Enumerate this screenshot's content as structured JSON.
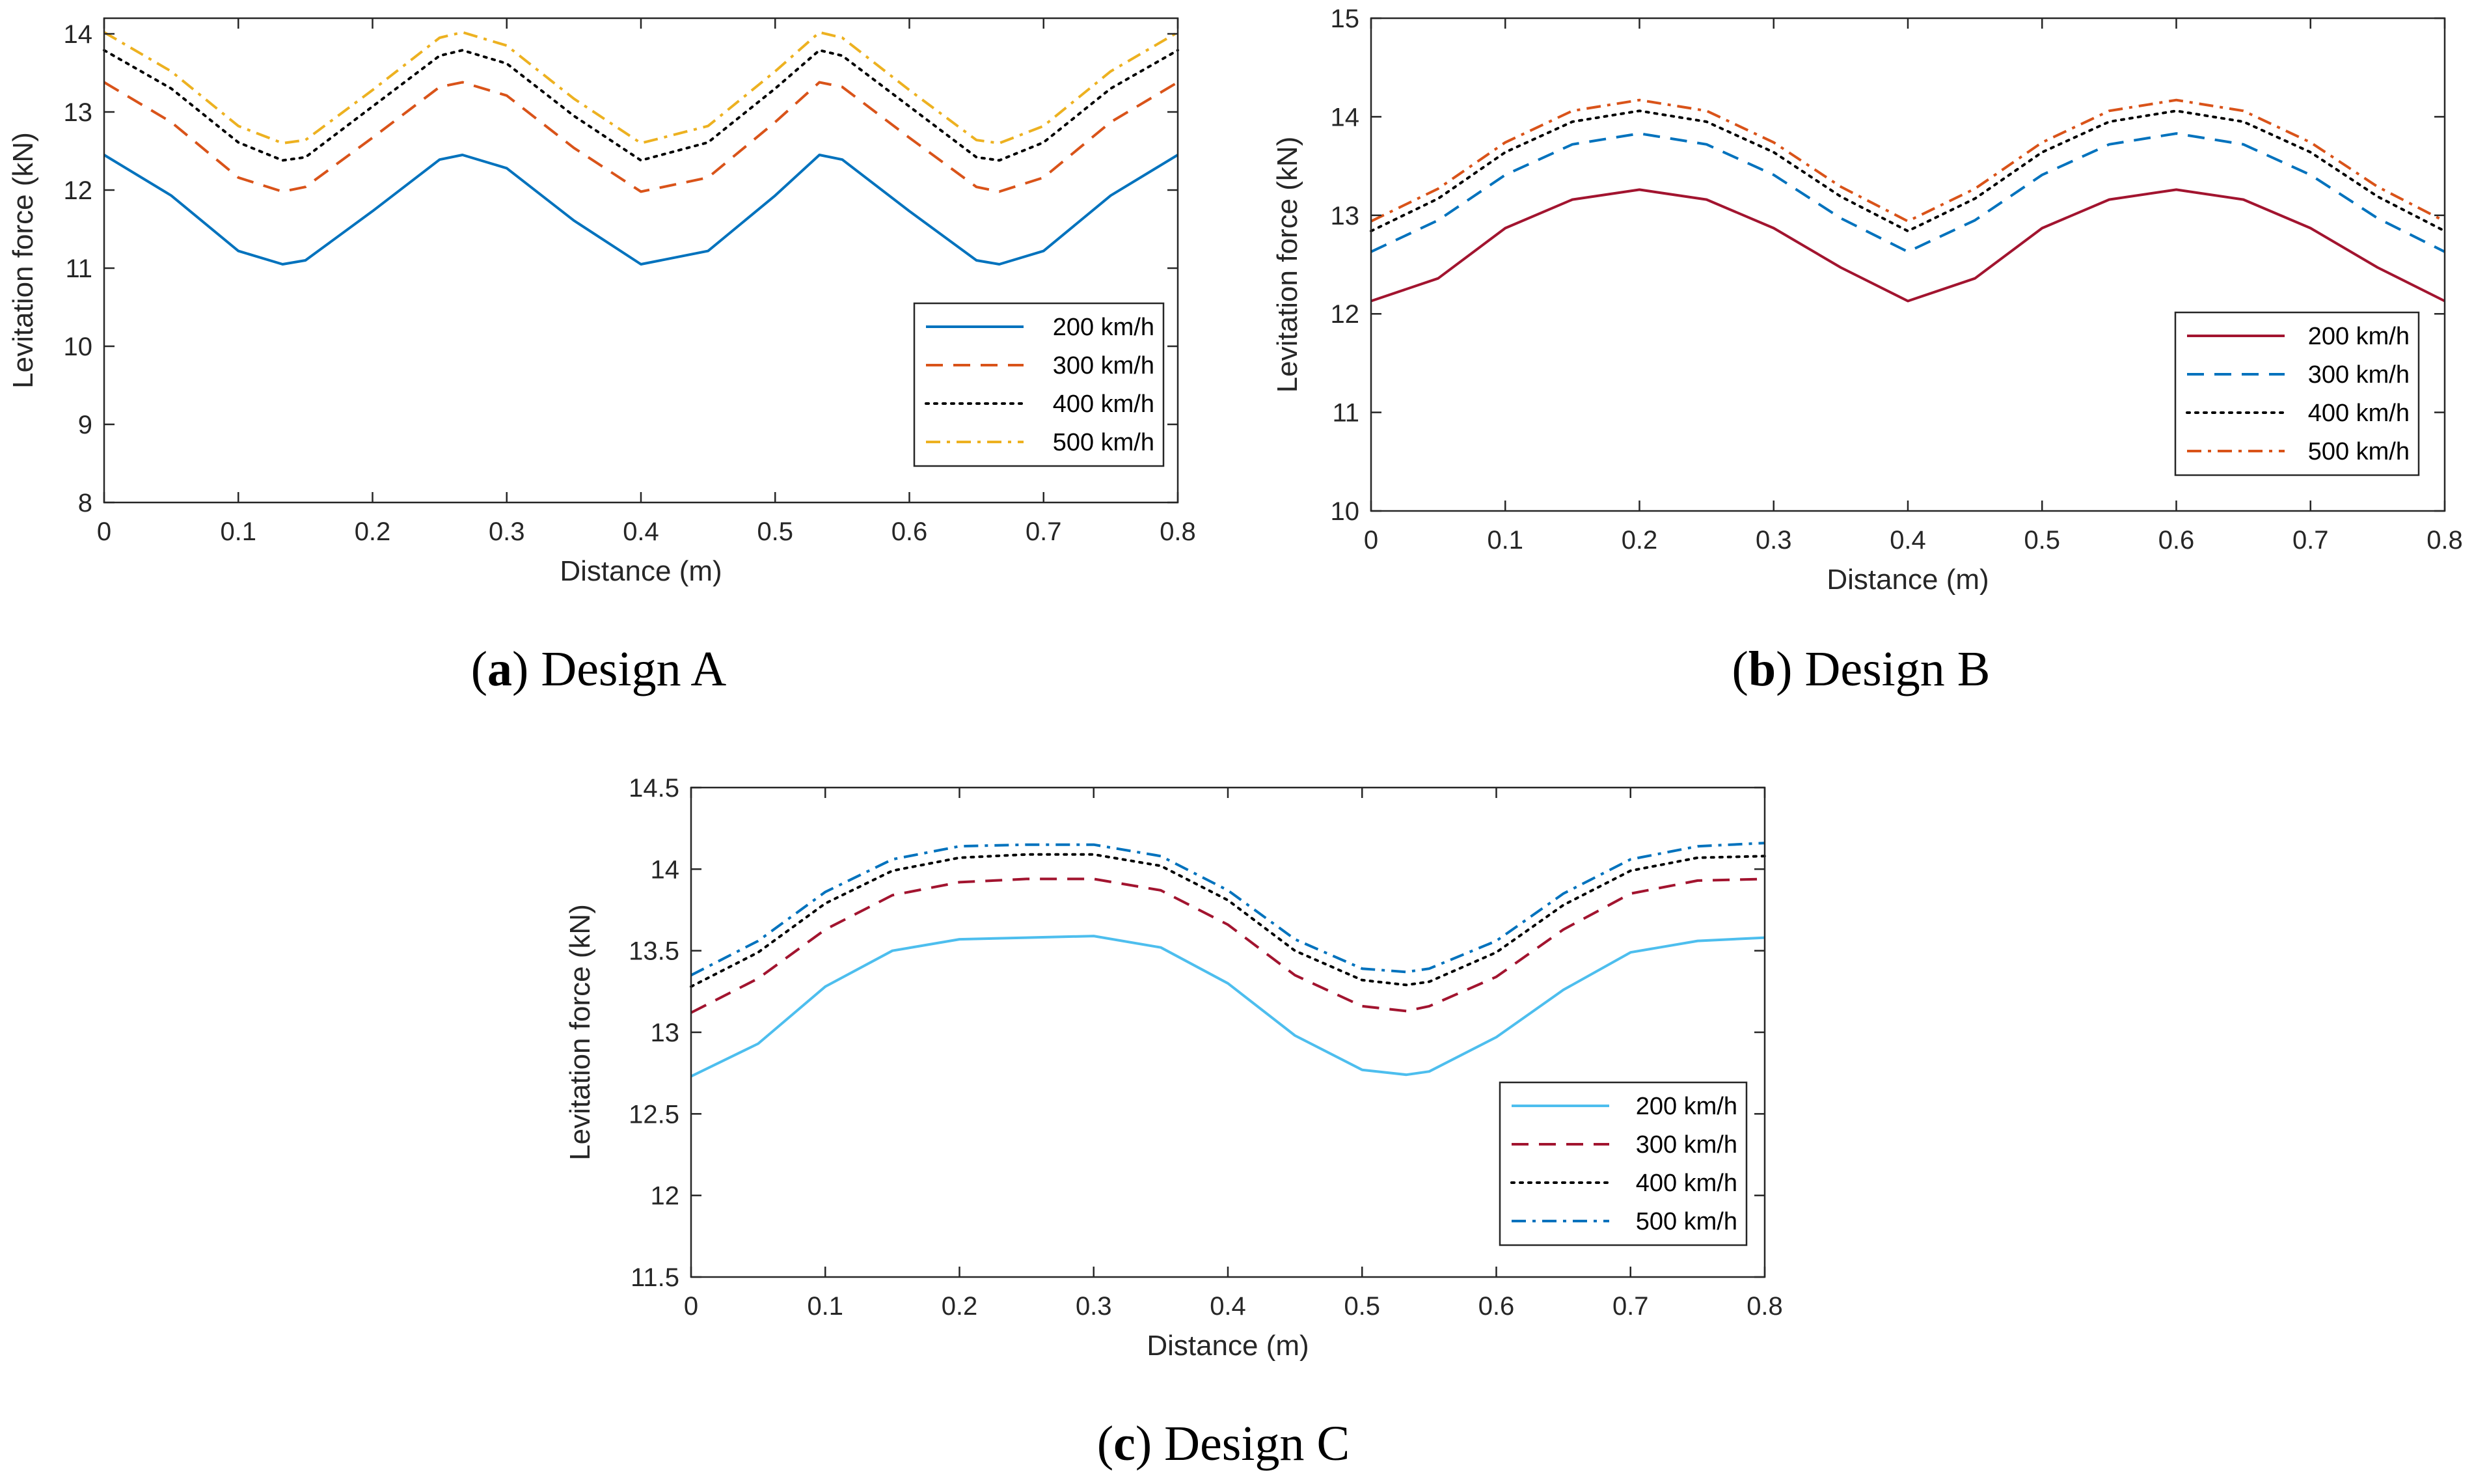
{
  "chart_data": [
    {
      "type": "line",
      "id": "a",
      "caption": {
        "letter": "a",
        "text": "Design A"
      },
      "xlabel": "Distance (m)",
      "ylabel": "Levitation force (kN)",
      "xlim": [
        0,
        0.8
      ],
      "ylim": [
        8,
        14.2
      ],
      "xticks": [
        0,
        0.1,
        0.2,
        0.3,
        0.4,
        0.5,
        0.6,
        0.7,
        0.8
      ],
      "xtick_labels": [
        "0",
        "0.1",
        "0.2",
        "0.3",
        "0.4",
        "0.5",
        "0.6",
        "0.7",
        "0.8"
      ],
      "yticks": [
        8,
        9,
        10,
        11,
        12,
        13,
        14
      ],
      "ytick_labels": [
        "8",
        "9",
        "10",
        "11",
        "12",
        "13",
        "14"
      ],
      "legend_position": "bottom-right",
      "x": [
        0,
        0.05,
        0.1,
        0.133,
        0.15,
        0.2,
        0.25,
        0.267,
        0.3,
        0.35,
        0.4,
        0.45,
        0.5,
        0.533,
        0.55,
        0.6,
        0.65,
        0.667,
        0.7,
        0.75,
        0.8
      ],
      "series": [
        {
          "name": "200 km/h",
          "color": "#0072BD",
          "dash": "solid",
          "values": [
            12.45,
            11.93,
            11.22,
            11.05,
            11.1,
            11.73,
            12.39,
            12.45,
            12.28,
            11.61,
            11.05,
            11.22,
            11.93,
            12.45,
            12.39,
            11.73,
            11.1,
            11.05,
            11.22,
            11.93,
            12.45
          ]
        },
        {
          "name": "300 km/h",
          "color": "#D95319",
          "dash": "long-dash",
          "values": [
            13.38,
            12.87,
            12.16,
            11.98,
            12.04,
            12.67,
            13.32,
            13.38,
            13.21,
            12.54,
            11.98,
            12.16,
            12.87,
            13.38,
            13.32,
            12.67,
            12.04,
            11.98,
            12.16,
            12.87,
            13.38
          ]
        },
        {
          "name": "400 km/h",
          "color": "#000000",
          "dash": "dotted",
          "values": [
            13.79,
            13.3,
            12.61,
            12.38,
            12.42,
            13.07,
            13.72,
            13.79,
            13.62,
            12.95,
            12.38,
            12.61,
            13.3,
            13.79,
            13.72,
            13.07,
            12.42,
            12.38,
            12.61,
            13.3,
            13.79
          ]
        },
        {
          "name": "500 km/h",
          "color": "#EDB120",
          "dash": "dash-dot",
          "values": [
            14.02,
            13.52,
            12.82,
            12.6,
            12.64,
            13.28,
            13.95,
            14.02,
            13.85,
            13.17,
            12.6,
            12.82,
            13.52,
            14.02,
            13.95,
            13.28,
            12.64,
            12.6,
            12.82,
            13.52,
            14.02
          ]
        }
      ]
    },
    {
      "type": "line",
      "id": "b",
      "caption": {
        "letter": "b",
        "text": "Design B"
      },
      "xlabel": "Distance (m)",
      "ylabel": "Levitation force (kN)",
      "xlim": [
        0,
        0.8
      ],
      "ylim": [
        10,
        15
      ],
      "xticks": [
        0,
        0.1,
        0.2,
        0.3,
        0.4,
        0.5,
        0.6,
        0.7,
        0.8
      ],
      "xtick_labels": [
        "0",
        "0.1",
        "0.2",
        "0.3",
        "0.4",
        "0.5",
        "0.6",
        "0.7",
        "0.8"
      ],
      "yticks": [
        10,
        11,
        12,
        13,
        14,
        15
      ],
      "ytick_labels": [
        "10",
        "11",
        "12",
        "13",
        "14",
        "15"
      ],
      "legend_position": "bottom-right",
      "x": [
        0,
        0.05,
        0.1,
        0.15,
        0.2,
        0.25,
        0.3,
        0.35,
        0.4,
        0.45,
        0.5,
        0.55,
        0.6,
        0.65,
        0.7,
        0.75,
        0.8
      ],
      "series": [
        {
          "name": "200 km/h",
          "color": "#A2142F",
          "dash": "solid",
          "values": [
            12.13,
            12.36,
            12.87,
            13.16,
            13.26,
            13.16,
            12.87,
            12.47,
            12.13,
            12.36,
            12.87,
            13.16,
            13.26,
            13.16,
            12.87,
            12.47,
            12.13
          ]
        },
        {
          "name": "300 km/h",
          "color": "#0072BD",
          "dash": "long-dash",
          "values": [
            12.63,
            12.95,
            13.41,
            13.72,
            13.83,
            13.72,
            13.41,
            12.97,
            12.63,
            12.95,
            13.41,
            13.72,
            13.83,
            13.72,
            13.41,
            12.97,
            12.63
          ]
        },
        {
          "name": "400 km/h",
          "color": "#000000",
          "dash": "dotted",
          "values": [
            12.84,
            13.17,
            13.64,
            13.95,
            14.06,
            13.95,
            13.64,
            13.19,
            12.84,
            13.17,
            13.64,
            13.95,
            14.06,
            13.95,
            13.64,
            13.19,
            12.84
          ]
        },
        {
          "name": "500 km/h",
          "color": "#D95319",
          "dash": "dash-dot",
          "values": [
            12.94,
            13.27,
            13.74,
            14.06,
            14.17,
            14.06,
            13.74,
            13.29,
            12.94,
            13.27,
            13.74,
            14.06,
            14.17,
            14.06,
            13.74,
            13.29,
            12.94
          ]
        }
      ]
    },
    {
      "type": "line",
      "id": "c",
      "caption": {
        "letter": "c",
        "text": "Design C"
      },
      "xlabel": "Distance (m)",
      "ylabel": "Levitation force (kN)",
      "xlim": [
        0,
        0.8
      ],
      "ylim": [
        11.5,
        14.5
      ],
      "xticks": [
        0,
        0.1,
        0.2,
        0.3,
        0.4,
        0.5,
        0.6,
        0.7,
        0.8
      ],
      "xtick_labels": [
        "0",
        "0.1",
        "0.2",
        "0.3",
        "0.4",
        "0.5",
        "0.6",
        "0.7",
        "0.8"
      ],
      "yticks": [
        11.5,
        12,
        12.5,
        13,
        13.5,
        14,
        14.5
      ],
      "ytick_labels": [
        "11.5",
        "12",
        "12.5",
        "13",
        "13.5",
        "14",
        "14.5"
      ],
      "legend_position": "bottom-right",
      "x": [
        0,
        0.05,
        0.1,
        0.15,
        0.2,
        0.25,
        0.3,
        0.35,
        0.4,
        0.45,
        0.5,
        0.533,
        0.55,
        0.6,
        0.65,
        0.7,
        0.75,
        0.8
      ],
      "series": [
        {
          "name": "200 km/h",
          "color": "#4DBEEE",
          "dash": "solid",
          "values": [
            12.73,
            12.93,
            13.28,
            13.5,
            13.57,
            13.58,
            13.59,
            13.52,
            13.3,
            12.98,
            12.77,
            12.74,
            12.76,
            12.97,
            13.26,
            13.49,
            13.56,
            13.58
          ]
        },
        {
          "name": "300 km/h",
          "color": "#A2142F",
          "dash": "long-dash",
          "values": [
            13.12,
            13.33,
            13.63,
            13.84,
            13.92,
            13.94,
            13.94,
            13.87,
            13.66,
            13.35,
            13.16,
            13.13,
            13.16,
            13.34,
            13.63,
            13.85,
            13.93,
            13.94
          ]
        },
        {
          "name": "400 km/h",
          "color": "#000000",
          "dash": "dotted",
          "values": [
            13.28,
            13.49,
            13.79,
            13.99,
            14.07,
            14.09,
            14.09,
            14.02,
            13.81,
            13.5,
            13.32,
            13.29,
            13.31,
            13.49,
            13.78,
            13.99,
            14.07,
            14.08
          ]
        },
        {
          "name": "500 km/h",
          "color": "#0072BD",
          "dash": "dash-dot",
          "values": [
            13.35,
            13.56,
            13.86,
            14.06,
            14.14,
            14.15,
            14.15,
            14.08,
            13.87,
            13.57,
            13.39,
            13.37,
            13.39,
            13.56,
            13.85,
            14.06,
            14.14,
            14.16
          ]
        }
      ]
    }
  ]
}
